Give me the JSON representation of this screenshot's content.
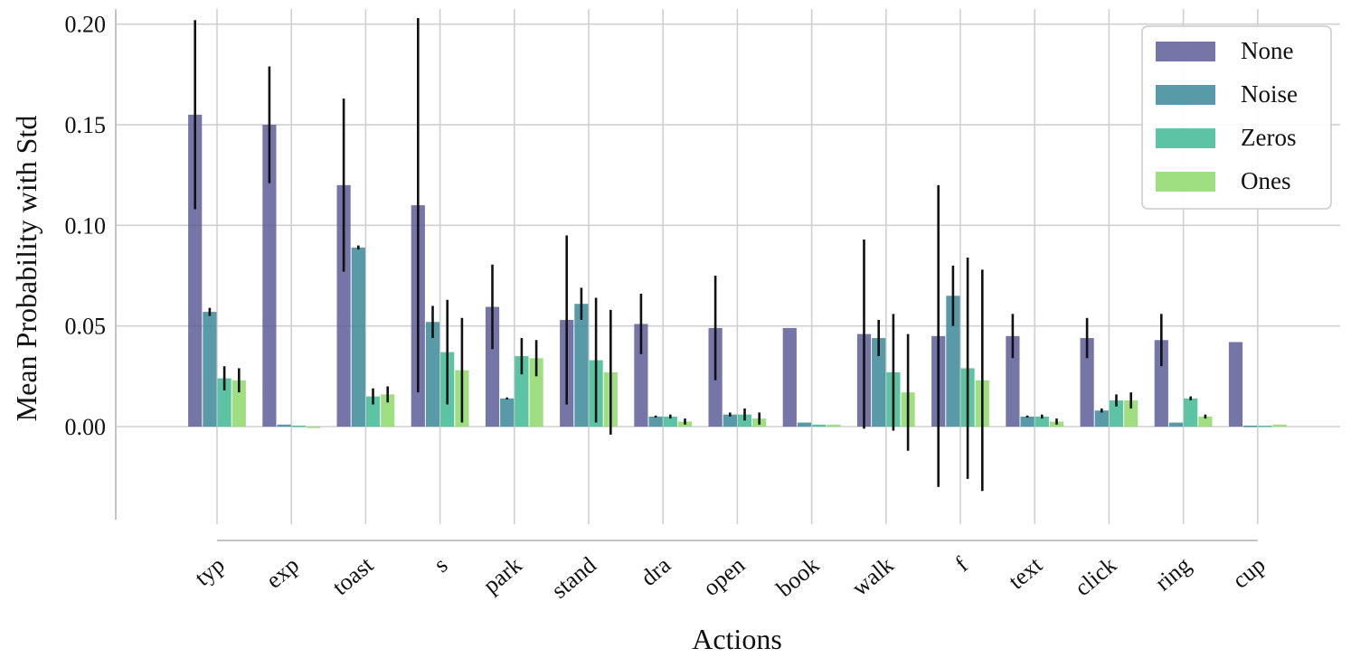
{
  "chart_data": {
    "type": "bar",
    "title": "",
    "xlabel": "Actions",
    "ylabel": "Mean Probability with Std",
    "ylim": [
      -0.0485,
      0.2075
    ],
    "yticks": [
      0.0,
      0.05,
      0.1,
      0.15,
      0.2
    ],
    "ytick_labels": [
      "0.00",
      "0.05",
      "0.10",
      "0.15",
      "0.20"
    ],
    "grid": true,
    "legend_position": "top-right",
    "categories": [
      "typ",
      "exp",
      "toast",
      "s",
      "park",
      "stand",
      "dra",
      "open",
      "book",
      "walk",
      "f",
      "text",
      "click",
      "ring",
      "cup"
    ],
    "series": [
      {
        "name": "None",
        "color": "#5e5d98",
        "values": [
          0.155,
          0.15,
          0.12,
          0.11,
          0.0595,
          0.053,
          0.051,
          0.049,
          0.049,
          0.046,
          0.045,
          0.045,
          0.044,
          0.043,
          0.042
        ],
        "std": [
          0.047,
          0.029,
          0.043,
          0.093,
          0.021,
          0.042,
          0.015,
          0.026,
          0.0,
          0.047,
          0.075,
          0.011,
          0.01,
          0.013,
          0.0
        ]
      },
      {
        "name": "Noise",
        "color": "#3b8898",
        "values": [
          0.057,
          0.001,
          0.089,
          0.052,
          0.014,
          0.061,
          0.005,
          0.006,
          0.002,
          0.044,
          0.065,
          0.005,
          0.008,
          0.002,
          0.0005
        ],
        "std": [
          0.002,
          0.0,
          0.001,
          0.008,
          0.0005,
          0.008,
          0.0005,
          0.001,
          0.0,
          0.009,
          0.015,
          0.0005,
          0.001,
          0.0,
          0.0
        ]
      },
      {
        "name": "Zeros",
        "color": "#3fb894",
        "values": [
          0.024,
          0.0005,
          0.015,
          0.037,
          0.035,
          0.033,
          0.005,
          0.006,
          0.001,
          0.027,
          0.029,
          0.005,
          0.013,
          0.014,
          0.0005
        ],
        "std": [
          0.006,
          0.0,
          0.004,
          0.026,
          0.009,
          0.031,
          0.001,
          0.003,
          0.0,
          0.029,
          0.055,
          0.001,
          0.003,
          0.001,
          0.0
        ]
      },
      {
        "name": "Ones",
        "color": "#8fd96b",
        "values": [
          0.023,
          0.0,
          0.016,
          0.028,
          0.034,
          0.027,
          0.0025,
          0.004,
          0.001,
          0.017,
          0.023,
          0.0025,
          0.013,
          0.005,
          0.001
        ],
        "std": [
          0.006,
          0.0,
          0.004,
          0.026,
          0.009,
          0.031,
          0.0015,
          0.003,
          0.0,
          0.029,
          0.055,
          0.0015,
          0.004,
          0.001,
          0.0
        ]
      }
    ]
  }
}
